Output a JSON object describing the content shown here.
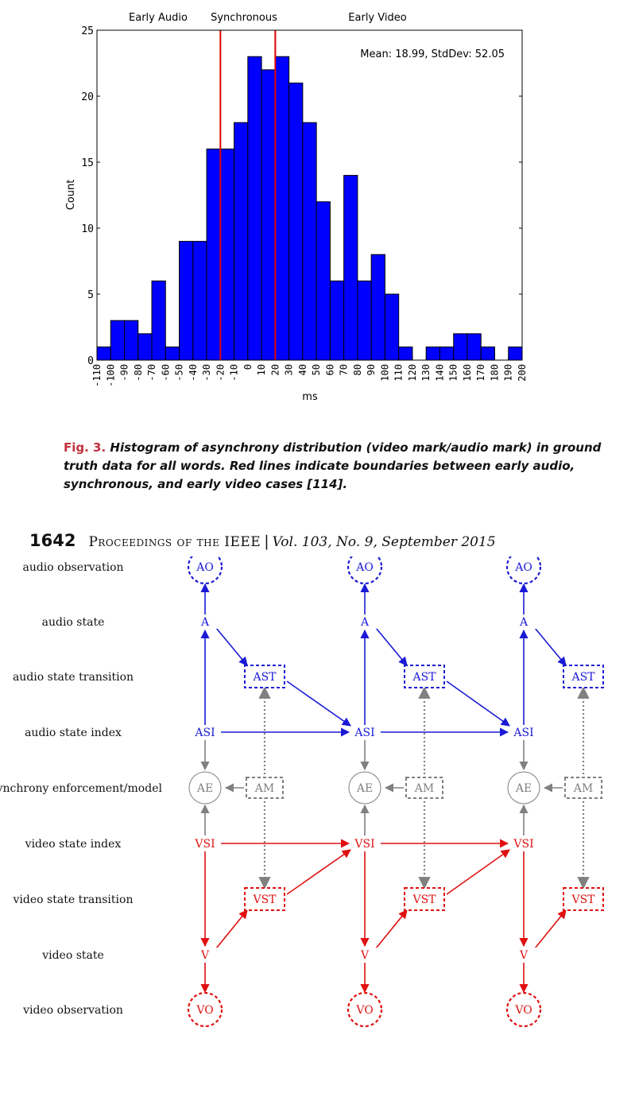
{
  "chart_data": {
    "type": "bar",
    "x_tick_labels": [
      "-110",
      "-100",
      "-90",
      "-80",
      "-70",
      "-60",
      "-50",
      "-40",
      "-30",
      "-20",
      "-10",
      "0",
      "10",
      "20",
      "30",
      "40",
      "50",
      "60",
      "70",
      "80",
      "90",
      "100",
      "110",
      "120",
      "130",
      "140",
      "150",
      "160",
      "170",
      "180",
      "190",
      "200"
    ],
    "bin_starts": [
      -110,
      -100,
      -90,
      -80,
      -70,
      -60,
      -50,
      -40,
      -30,
      -20,
      -10,
      0,
      10,
      20,
      30,
      40,
      50,
      60,
      70,
      80,
      90,
      100,
      110,
      120,
      130,
      140,
      150,
      160,
      170,
      180,
      190
    ],
    "values": [
      1,
      3,
      3,
      2,
      6,
      1,
      9,
      9,
      16,
      16,
      18,
      23,
      22,
      23,
      21,
      18,
      12,
      6,
      14,
      6,
      8,
      5,
      1,
      0,
      1,
      1,
      2,
      2,
      1,
      0,
      1
    ],
    "xlabel": "ms",
    "ylabel": "Count",
    "ylim": [
      0,
      25
    ],
    "xlim": [
      -110,
      200
    ],
    "y_ticks": [
      0,
      5,
      10,
      15,
      20,
      25
    ],
    "bar_color": "#0000ff",
    "vlines": [
      -20,
      20
    ],
    "vline_color": "#dd0000",
    "region_labels": [
      "Early Audio",
      "Synchronous",
      "Early Video"
    ],
    "annotation": "Mean: 18.99, StdDev: 52.05",
    "grid": false
  },
  "caption": {
    "label": "Fig. 3.",
    "text": "Histogram of asynchrony distribution (video mark/audio mark) in ground truth data for all words. Red lines indicate boundaries between early audio, synchronous, and early video cases [114]."
  },
  "footer": {
    "page_number": "1642",
    "journal": "Proceedings of the IEEE",
    "separator": "|",
    "volume": "Vol. 103, No. 9, September 2015"
  },
  "diagram": {
    "row_labels": [
      "audio observation",
      "audio state",
      "audio state transition",
      "audio state index",
      "asynchrony enforcement/model",
      "video state index",
      "video state transition",
      "video state",
      "video observation"
    ],
    "nodes": {
      "audio_observation": "AO",
      "audio_state": "A",
      "audio_state_transition": "AST",
      "audio_state_index": "ASI",
      "enforcement": "AE",
      "model": "AM",
      "video_state_index": "VSI",
      "video_state_transition": "VST",
      "video_state": "V",
      "video_observation": "VO"
    },
    "colors": {
      "audio": "#1a1ad6",
      "video": "#e01010",
      "async": "#808080"
    }
  }
}
